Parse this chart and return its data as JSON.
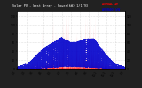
{
  "title": "Solar PV - West Array - Power(kW) 1/1/93",
  "bg_color": "#222222",
  "plot_bg": "#ffffff",
  "grid_color": "#aaaaaa",
  "actual_color": "#ff0000",
  "average_color": "#0000cc",
  "legend_actual": "ACTUAL kW",
  "legend_avg": "AVERAGE kW",
  "ylim": [
    0,
    130
  ],
  "xlim": [
    0,
    365
  ],
  "peak_power": 125,
  "avg_peak": 85
}
